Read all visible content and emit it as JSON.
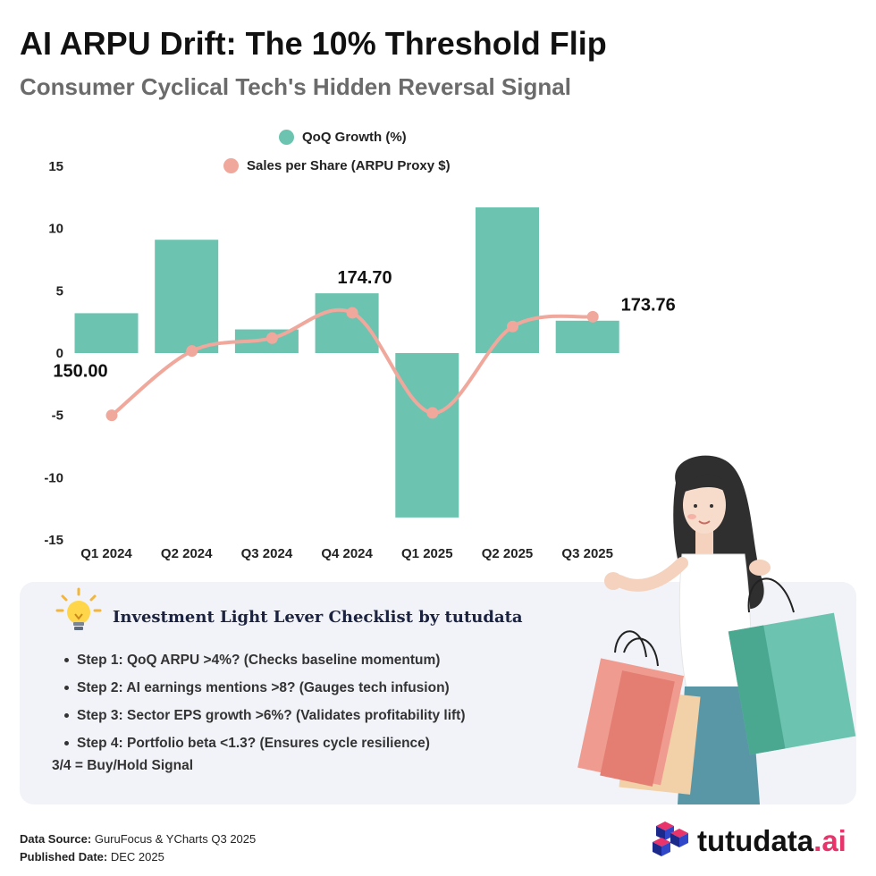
{
  "title": "AI ARPU Drift: The 10% Threshold Flip",
  "subtitle": "Consumer Cyclical Tech's Hidden Reversal Signal",
  "colors": {
    "bar": "#6cc3b0",
    "line": "#f0a89c",
    "title": "#111111",
    "subtitle": "#6b6b6b",
    "panel": "#f2f3f8",
    "brand_accent": "#e8336b"
  },
  "chart_data": {
    "type": "bar",
    "categories": [
      "Q1 2024",
      "Q2 2024",
      "Q3 2024",
      "Q4 2024",
      "Q1 2025",
      "Q2 2025",
      "Q3 2025"
    ],
    "series": [
      {
        "name": "QoQ Growth (%)",
        "type": "bar",
        "axis": "left",
        "values": [
          3.2,
          9.1,
          1.9,
          4.8,
          -13.2,
          11.7,
          2.6
        ]
      },
      {
        "name": "Sales per Share (ARPU Proxy $)",
        "type": "line",
        "axis": "right",
        "values": [
          150.0,
          165.5,
          168.6,
          174.7,
          150.6,
          171.4,
          173.76
        ]
      }
    ],
    "yticks": [
      "15",
      "10",
      "5",
      "0",
      "-5",
      "-10",
      "-15"
    ],
    "ylim": [
      -15,
      15
    ],
    "y2lim": [
      120,
      210
    ],
    "data_labels": [
      {
        "index": 0,
        "text": "150.00"
      },
      {
        "index": 3,
        "text": "174.70"
      },
      {
        "index": 6,
        "text": "173.76"
      }
    ],
    "legend_position": "top-center",
    "grid": false
  },
  "checklist": {
    "title": "Investment Light Lever Checklist by tutudata",
    "steps": [
      "Step 1: QoQ ARPU >4%? (Checks baseline momentum)",
      "Step 2: AI earnings mentions >8? (Gauges tech infusion)",
      "Step 3: Sector EPS growth >6%? (Validates profitability lift)",
      "Step 4: Portfolio beta <1.3? (Ensures cycle resilience)"
    ],
    "signal": "3/4 = Buy/Hold Signal"
  },
  "footer": {
    "source_label": "Data Source:",
    "source_value": "GuruFocus & YCharts Q3 2025",
    "date_label": "Published Date:",
    "date_value": "DEC 2025"
  },
  "brand": {
    "name": "tutudata",
    "suffix": ".ai"
  },
  "icons": {
    "bulb": "lightbulb-icon",
    "logo": "cube-logo-icon",
    "illustration": "woman-with-shopping-bags"
  }
}
